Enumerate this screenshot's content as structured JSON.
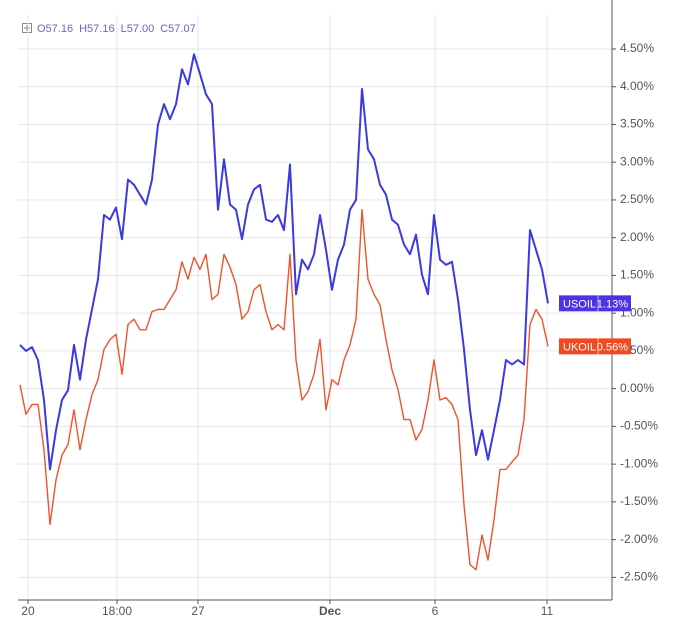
{
  "chart_data": {
    "type": "line",
    "ohlc": [
      "O57.16",
      "H57.16",
      "L57.00",
      "C57.07"
    ],
    "x": [
      0,
      1,
      2,
      3,
      4,
      5,
      6,
      7,
      8,
      9,
      10,
      11,
      12,
      13,
      14,
      15,
      16,
      17,
      18,
      19,
      20,
      21,
      22,
      23,
      24,
      25,
      26,
      27,
      28,
      29,
      30,
      31,
      32,
      33,
      34,
      35,
      36,
      37,
      38,
      39,
      40,
      41,
      42,
      43,
      44,
      45,
      46,
      47,
      48,
      49,
      50,
      51,
      52,
      53,
      54,
      55,
      56,
      57,
      58,
      59,
      60,
      61,
      62,
      63,
      64,
      65,
      66,
      67,
      68,
      69,
      70,
      71,
      72,
      73,
      74,
      75,
      76,
      77,
      78,
      79,
      80,
      81,
      82,
      83,
      84,
      85,
      86,
      87,
      88
    ],
    "series": [
      {
        "name": "USOIL",
        "color": "#3a3ae0",
        "box_color": "#4b33e6",
        "last_label": "1.13%",
        "values": [
          0.58,
          0.5,
          0.55,
          0.38,
          -0.15,
          -1.07,
          -0.55,
          -0.15,
          -0.02,
          0.58,
          0.12,
          0.65,
          1.05,
          1.45,
          2.3,
          2.24,
          2.4,
          1.98,
          2.77,
          2.7,
          2.57,
          2.44,
          2.77,
          3.5,
          3.77,
          3.57,
          3.77,
          4.23,
          4.03,
          4.43,
          4.17,
          3.9,
          3.77,
          2.37,
          3.04,
          2.44,
          2.37,
          1.98,
          2.44,
          2.64,
          2.7,
          2.24,
          2.21,
          2.3,
          2.1,
          2.97,
          1.25,
          1.71,
          1.58,
          1.78,
          2.3,
          1.84,
          1.31,
          1.71,
          1.91,
          2.37,
          2.5,
          3.97,
          3.17,
          3.04,
          2.7,
          2.57,
          2.24,
          2.17,
          1.91,
          1.78,
          2.04,
          1.51,
          1.25,
          2.3,
          1.71,
          1.64,
          1.68,
          1.18,
          0.52,
          -0.28,
          -0.88,
          -0.55,
          -0.94,
          -0.55,
          -0.15,
          0.38,
          0.32,
          0.38,
          0.32,
          2.1,
          1.84,
          1.58,
          1.13
        ]
      },
      {
        "name": "UKOIL",
        "color": "#f0522c",
        "box_color": "#f04a22",
        "last_label": "0.56%",
        "values": [
          0.05,
          -0.34,
          -0.21,
          -0.21,
          -0.81,
          -1.8,
          -1.21,
          -0.88,
          -0.74,
          -0.28,
          -0.81,
          -0.41,
          -0.08,
          0.12,
          0.52,
          0.65,
          0.72,
          0.19,
          0.85,
          0.92,
          0.78,
          0.78,
          1.02,
          1.05,
          1.05,
          1.18,
          1.31,
          1.68,
          1.45,
          1.74,
          1.58,
          1.78,
          1.18,
          1.25,
          1.78,
          1.61,
          1.38,
          0.92,
          1.02,
          1.31,
          1.38,
          1.02,
          0.78,
          0.85,
          0.78,
          1.78,
          0.38,
          -0.15,
          -0.04,
          0.19,
          0.65,
          -0.28,
          0.12,
          0.05,
          0.38,
          0.58,
          0.92,
          2.37,
          1.45,
          1.25,
          1.11,
          0.65,
          0.25,
          -0.01,
          -0.41,
          -0.41,
          -0.68,
          -0.54,
          -0.15,
          0.38,
          -0.15,
          -0.12,
          -0.21,
          -0.41,
          -1.54,
          -2.33,
          -2.4,
          -1.94,
          -2.27,
          -1.74,
          -1.07,
          -1.07,
          -0.97,
          -0.88,
          -0.41,
          0.85,
          1.05,
          0.92,
          0.56
        ]
      }
    ],
    "xlim": [
      -0.33,
      98.67
    ],
    "xticks": [
      {
        "value": 1.33,
        "label": "20"
      },
      {
        "value": 16.17,
        "label": "18:00"
      },
      {
        "value": 29.67,
        "label": "27"
      },
      {
        "value": 51.67,
        "label": "Dec",
        "bold": true
      },
      {
        "value": 69.17,
        "label": "6"
      },
      {
        "value": 87.83,
        "label": "11"
      }
    ],
    "ylim": [
      -2.8,
      4.95
    ],
    "yticks": [
      {
        "value": 4.5,
        "label": "4.50%"
      },
      {
        "value": 4,
        "label": "4.00%"
      },
      {
        "value": 3.5,
        "label": "3.50%"
      },
      {
        "value": 3,
        "label": "3.00%"
      },
      {
        "value": 2.5,
        "label": "2.50%"
      },
      {
        "value": 2,
        "label": "2.00%"
      },
      {
        "value": 1.5,
        "label": "1.50%"
      },
      {
        "value": 1,
        "label": "1.00%"
      },
      {
        "value": 0.5,
        "label": "0.50%"
      },
      {
        "value": 0,
        "label": "0.00%"
      },
      {
        "value": -0.5,
        "label": "-0.50%"
      },
      {
        "value": -1,
        "label": "-1.00%"
      },
      {
        "value": -1.5,
        "label": "-1.50%"
      },
      {
        "value": -2,
        "label": "-2.00%"
      },
      {
        "value": -2.5,
        "label": "-2.50%"
      }
    ],
    "grid": true
  }
}
